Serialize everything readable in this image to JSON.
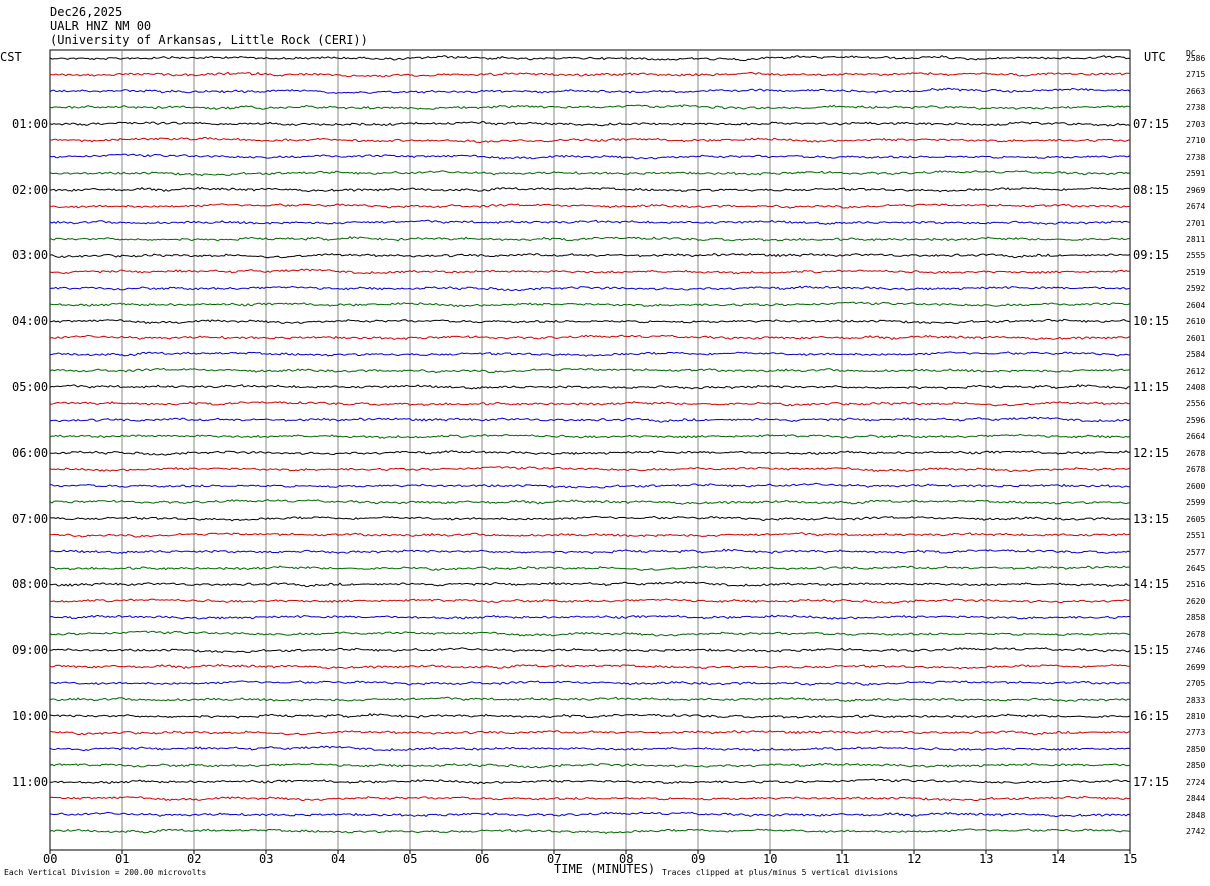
{
  "header": {
    "date": "Dec26,2025",
    "station": "UALR HNZ NM 00",
    "institution": "(University of Arkansas, Little Rock (CERI))"
  },
  "left_zone_label": "CST",
  "right_zone_label": "UTC",
  "dc_label": "DC",
  "footer": {
    "scale": "Each Vertical Division =  200.00 microvolts",
    "x_axis_label": "TIME (MINUTES)",
    "clip_note": "Traces clipped at plus/minus 5 vertical divisions"
  },
  "chart_data": {
    "type": "line",
    "xlabel": "TIME (MINUTES)",
    "xlim": [
      0,
      15
    ],
    "x_ticks": [
      "00",
      "01",
      "02",
      "03",
      "04",
      "05",
      "06",
      "07",
      "08",
      "09",
      "10",
      "11",
      "12",
      "13",
      "14",
      "15"
    ],
    "trace_count": 48,
    "trace_colors": [
      "#000000",
      "#cc0000",
      "#0000cc",
      "#006600"
    ],
    "cst_hour_labels": [
      "01:00",
      "02:00",
      "03:00",
      "04:00",
      "05:00",
      "06:00",
      "07:00",
      "08:00",
      "09:00",
      "10:00",
      "11:00"
    ],
    "utc_hour_labels": [
      "07:15",
      "08:15",
      "09:15",
      "10:15",
      "11:15",
      "12:15",
      "13:15",
      "14:15",
      "15:15",
      "16:15",
      "17:15"
    ],
    "hour_label_trace_index": [
      4,
      8,
      12,
      16,
      20,
      24,
      28,
      32,
      36,
      40,
      44
    ],
    "dc_values": [
      "2586",
      "2715",
      "2663",
      "2738",
      "2703",
      "2710",
      "2738",
      "2591",
      "2969",
      "2674",
      "2701",
      "2811",
      "2555",
      "2519",
      "2592",
      "2604",
      "2610",
      "2601",
      "2584",
      "2612",
      "2408",
      "2556",
      "2596",
      "2664",
      "2678",
      "2678",
      "2600",
      "2599",
      "2605",
      "2551",
      "2577",
      "2645",
      "2516",
      "2620",
      "2858",
      "2678",
      "2746",
      "2699",
      "2705",
      "2833",
      "2810",
      "2773",
      "2850",
      "2850",
      "2724",
      "2844",
      "2848",
      "2742"
    ]
  }
}
